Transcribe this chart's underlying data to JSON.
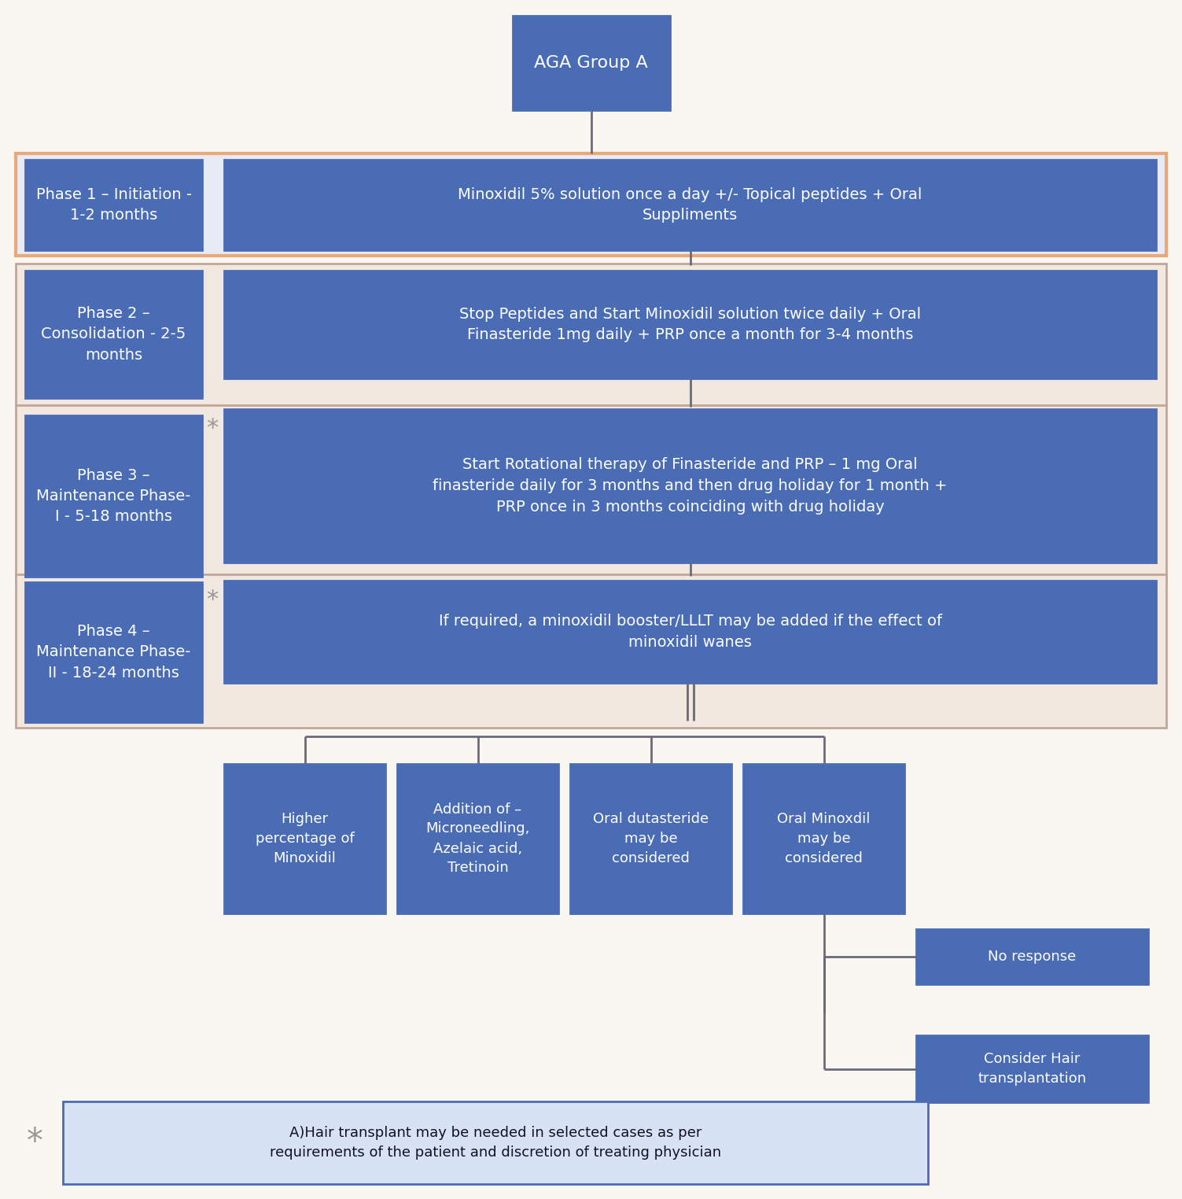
{
  "bg_color": "#faf7f2",
  "dark_blue": "#4a6cb5",
  "white": "#ffffff",
  "gray_ast": "#999999",
  "phase1_bg": "#e8eaf6",
  "phase1_border": "#e8a878",
  "phase234_bg": "#f2e8e0",
  "phase234_border": "#c0a898",
  "title_text": "AGA Group A",
  "phases": [
    "Phase 1 – Initiation -\n1-2 months",
    "Phase 2 –\nConsolidation - 2-5\nmonths",
    "Phase 3 –\nMaintenance Phase-\nI - 5-18 months",
    "Phase 4 –\nMaintenance Phase-\nII - 18-24 months"
  ],
  "main_texts": [
    "Minoxidil 5% solution once a day +/- Topical peptides + Oral\nSuppliments",
    "Stop Peptides and Start Minoxidil solution twice daily + Oral\nFinasteride 1mg daily + PRP once a month for 3-4 months",
    "Start Rotational therapy of Finasteride and PRP – 1 mg Oral\nfinasteride daily for 3 months and then drug holiday for 1 month +\nPRP once in 3 months coinciding with drug holiday",
    "If required, a minoxidil booster/LLLT may be added if the effect of\nminoxidil wanes"
  ],
  "branch_texts": [
    "Higher\npercentage of\nMinoxidil",
    "Addition of –\nMicroneedling,\nAzelaic acid,\nTretinoin",
    "Oral dutasteride\nmay be\nconsidered",
    "Oral Minoxdil\nmay be\nconsidered"
  ],
  "subbranch_texts": [
    "No response",
    "Consider Hair\ntransplantation"
  ],
  "footnote": "A)Hair transplant may be needed in selected cases as per\nrequirements of the patient and discretion of treating physician"
}
